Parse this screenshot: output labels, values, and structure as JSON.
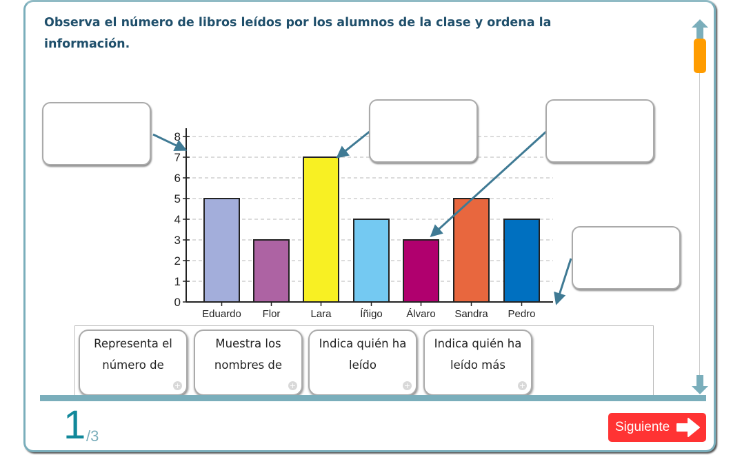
{
  "instruction": "Observa el número de libros leídos por los alumnos de la clase y ordena la información.",
  "colors": {
    "accent": "#7aaebb",
    "title": "#1f4f6b",
    "scroll_thumb": "#ff9c00",
    "next_button": "#ff3333",
    "arrow": "#3f7a94",
    "page_number": "#11889a"
  },
  "chart_data": {
    "type": "bar",
    "title": "",
    "xlabel": "",
    "ylabel": "",
    "categories": [
      "Eduardo",
      "Flor",
      "Lara",
      "Íñigo",
      "Álvaro",
      "Sandra",
      "Pedro"
    ],
    "values": [
      5,
      3,
      7,
      4,
      3,
      5,
      4
    ],
    "bar_colors": [
      "#a3aedb",
      "#ad63a3",
      "#f8f023",
      "#74c9f2",
      "#b0006e",
      "#e8673e",
      "#0070c0"
    ],
    "yticks": [
      0,
      1,
      2,
      3,
      4,
      5,
      6,
      7,
      8
    ],
    "ylim": [
      0,
      8
    ],
    "grid": true,
    "legend": "none"
  },
  "drop_targets": [
    {
      "id": "target-y-axis",
      "value": ""
    },
    {
      "id": "target-max-bar",
      "value": ""
    },
    {
      "id": "target-min-bar",
      "value": ""
    },
    {
      "id": "target-x-axis",
      "value": ""
    }
  ],
  "cards": [
    {
      "label": "Representa el número de"
    },
    {
      "label": "Muestra los nombres de"
    },
    {
      "label": "Indica quién ha leído"
    },
    {
      "label": "Indica quién ha leído más"
    }
  ],
  "pagination": {
    "current": "1",
    "total": "/3"
  },
  "next_button": {
    "label": "Siguiente"
  }
}
